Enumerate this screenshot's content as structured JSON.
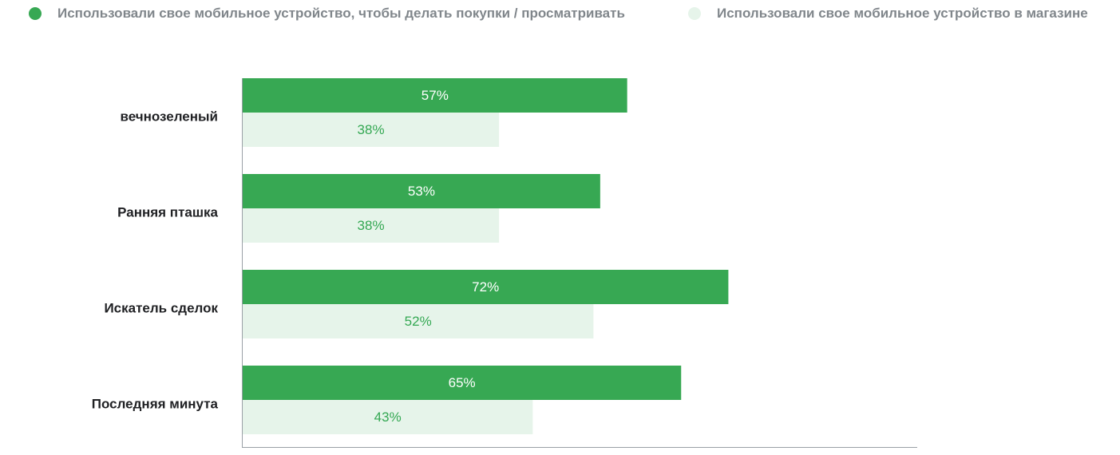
{
  "colors": {
    "series1": "#37a853",
    "series2": "#e6f4ea",
    "label_on_dark": "#ffffff",
    "label_on_light": "#34a853",
    "category_text": "#202124",
    "legend_text": "#80868b",
    "axis": "#9aa0a6"
  },
  "legend": [
    {
      "label": "Использовали свое мобильное устройство, чтобы делать покупки / просматривать"
    },
    {
      "label": "Использовали свое мобильное устройство в магазине"
    }
  ],
  "chart_data": {
    "type": "bar",
    "orientation": "horizontal",
    "categories": [
      "вечнозеленый",
      "Ранняя пташка",
      "Искатель сделок",
      "Последняя минута"
    ],
    "series": [
      {
        "name": "Использовали свое мобильное устройство, чтобы делать покупки / просматривать",
        "values": [
          57,
          53,
          72,
          65
        ]
      },
      {
        "name": "Использовали свое мобильное устройство в магазине",
        "values": [
          38,
          38,
          52,
          43
        ]
      }
    ],
    "value_suffix": "%",
    "xlim": [
      0,
      100
    ],
    "grid": false,
    "legend_position": "top"
  }
}
